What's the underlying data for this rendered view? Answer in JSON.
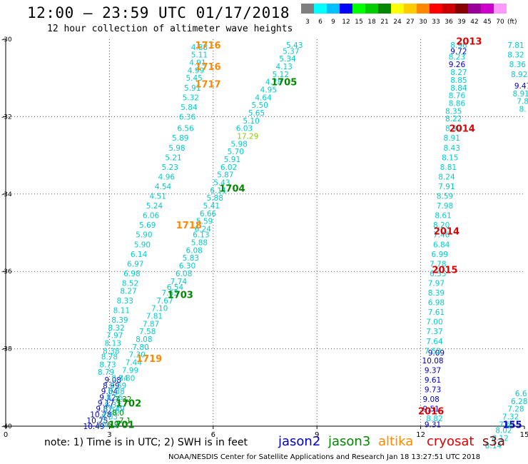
{
  "header": {
    "title": "12:00 – 23:59 UTC 01/17/2018",
    "subtitle": "12 hour collection of altimeter wave heights"
  },
  "legend": {
    "unit": "(ft)",
    "bins": [
      {
        "label": "3",
        "color": "#7f7f7f"
      },
      {
        "label": "6",
        "color": "#00ffff"
      },
      {
        "label": "9",
        "color": "#00bfff"
      },
      {
        "label": "12",
        "color": "#0000ff"
      },
      {
        "label": "15",
        "color": "#00ff00"
      },
      {
        "label": "18",
        "color": "#00cc00"
      },
      {
        "label": "21",
        "color": "#008800"
      },
      {
        "label": "24",
        "color": "#ffff00"
      },
      {
        "label": "27",
        "color": "#ffcc00"
      },
      {
        "label": "30",
        "color": "#ff8800"
      },
      {
        "label": "33",
        "color": "#ff0000"
      },
      {
        "label": "36",
        "color": "#cc0000"
      },
      {
        "label": "39",
        "color": "#880000"
      },
      {
        "label": "42",
        "color": "#990099"
      },
      {
        "label": "45",
        "color": "#cc00cc"
      },
      {
        "label": "70",
        "color": "#ff99ff"
      }
    ]
  },
  "footer": {
    "note": "note: 1) Time is in UTC; 2) SWH is in feet",
    "satellites": [
      {
        "name": "jason2",
        "color": "#0000cc"
      },
      {
        "name": "jason3",
        "color": "#008800"
      },
      {
        "name": "altika",
        "color": "#ff8800"
      },
      {
        "name": "cryosat",
        "color": "#dd0000"
      },
      {
        "name": "s3a",
        "color": "#880000"
      }
    ],
    "credit": "NOAA/NESDIS Center for Satellite Applications and Research     Jan 18 13:27:51 UTC 2018"
  },
  "chart_data": {
    "type": "scatter",
    "x_ticks": [
      "0",
      "3",
      "6",
      "9",
      "12",
      "15"
    ],
    "y_ticks": [
      "-30",
      "-32",
      "-34",
      "-36",
      "-38",
      "-40"
    ],
    "xlim": [
      0,
      15
    ],
    "ylim": [
      -40,
      -30
    ],
    "grid": true,
    "labels": [
      {
        "x": 5.85,
        "y": -30.15,
        "t": "1716",
        "c": "#ff8800"
      },
      {
        "x": 5.85,
        "y": -30.7,
        "t": "1716",
        "c": "#ff8800"
      },
      {
        "x": 5.85,
        "y": -31.15,
        "t": "1717",
        "c": "#ff8800"
      },
      {
        "x": 8.05,
        "y": -31.1,
        "t": "1705",
        "c": "#008800"
      },
      {
        "x": 6.55,
        "y": -33.85,
        "t": "1704",
        "c": "#008800"
      },
      {
        "x": 5.3,
        "y": -34.8,
        "t": "1718",
        "c": "#ff8800"
      },
      {
        "x": 5.05,
        "y": -36.6,
        "t": "1703",
        "c": "#008800"
      },
      {
        "x": 4.15,
        "y": -38.25,
        "t": "1719",
        "c": "#ff8800"
      },
      {
        "x": 3.55,
        "y": -39.4,
        "t": "1702",
        "c": "#008800"
      },
      {
        "x": 3.35,
        "y": -39.95,
        "t": "1701",
        "c": "#008800"
      },
      {
        "x": 13.4,
        "y": -30.05,
        "t": "2013",
        "c": "#dd0000"
      },
      {
        "x": 13.2,
        "y": -32.3,
        "t": "2014",
        "c": "#dd0000"
      },
      {
        "x": 12.75,
        "y": -34.95,
        "t": "2014",
        "c": "#dd0000"
      },
      {
        "x": 12.7,
        "y": -35.95,
        "t": "2015",
        "c": "#dd0000"
      },
      {
        "x": 12.3,
        "y": -39.6,
        "t": "2016",
        "c": "#dd0000"
      },
      {
        "x": 14.65,
        "y": -39.95,
        "t": "155",
        "c": "#0000cc"
      }
    ],
    "series": [
      {
        "color": "#00cccc",
        "points": [
          [
            5.6,
            -30.2,
            "4.88"
          ],
          [
            5.6,
            -30.4,
            "5.11"
          ],
          [
            5.55,
            -30.6,
            "4.91"
          ],
          [
            5.5,
            -30.8,
            "4.99"
          ],
          [
            5.45,
            -31.0,
            "5.45"
          ],
          [
            5.4,
            -31.25,
            "5.91"
          ],
          [
            5.35,
            -31.5,
            "5.32"
          ],
          [
            5.3,
            -31.75,
            "5.84"
          ],
          [
            5.25,
            -32.0,
            "6.36"
          ],
          [
            5.2,
            -32.3,
            "6.56"
          ],
          [
            5.05,
            -32.55,
            "5.89"
          ],
          [
            4.95,
            -32.8,
            "5.98"
          ],
          [
            4.85,
            -33.05,
            "5.21"
          ],
          [
            4.75,
            -33.3,
            "5.23"
          ],
          [
            4.65,
            -33.55,
            "4.96"
          ],
          [
            4.55,
            -33.8,
            "4.54"
          ],
          [
            4.4,
            -34.05,
            "4.51"
          ],
          [
            4.3,
            -34.3,
            "5.24"
          ],
          [
            4.2,
            -34.55,
            "6.06"
          ],
          [
            4.1,
            -34.8,
            "5.69"
          ],
          [
            4.0,
            -35.05,
            "5.90"
          ],
          [
            3.95,
            -35.3,
            "5.90"
          ],
          [
            3.85,
            -35.55,
            "6.14"
          ],
          [
            3.75,
            -35.8,
            "6.97"
          ],
          [
            3.65,
            -36.05,
            "6.98"
          ],
          [
            3.6,
            -36.3,
            "8.52"
          ],
          [
            3.55,
            -36.5,
            "8.27"
          ],
          [
            3.45,
            -36.75,
            "8.33"
          ],
          [
            3.35,
            -37.0,
            "8.11"
          ],
          [
            3.3,
            -37.25,
            "8.39"
          ],
          [
            3.2,
            -37.45,
            "8.32"
          ],
          [
            3.15,
            -37.65,
            "7.97"
          ],
          [
            3.1,
            -37.85,
            "8.13"
          ],
          [
            3.05,
            -38.05,
            "8.38"
          ],
          [
            3.0,
            -38.2,
            "8.78"
          ],
          [
            2.95,
            -38.4,
            "8.73"
          ],
          [
            2.9,
            -38.6,
            "8.79"
          ]
        ]
      },
      {
        "color": "#00cccc",
        "points": [
          [
            8.35,
            -30.15,
            "5.43"
          ],
          [
            8.25,
            -30.3,
            "5.37"
          ],
          [
            8.15,
            -30.5,
            "5.34"
          ],
          [
            8.05,
            -30.7,
            "4.13"
          ],
          [
            7.95,
            -30.9,
            "5.12"
          ],
          [
            7.75,
            -31.1,
            "4.78"
          ],
          [
            7.6,
            -31.3,
            "4.95"
          ],
          [
            7.45,
            -31.5,
            "4.64"
          ],
          [
            7.35,
            -31.7,
            "5.50"
          ],
          [
            7.25,
            -31.9,
            "5.65"
          ],
          [
            7.1,
            -32.1,
            "5.10"
          ],
          [
            6.9,
            -32.3,
            "6.03"
          ],
          [
            6.75,
            -32.7,
            "5.98"
          ],
          [
            6.65,
            -32.9,
            "5.70"
          ],
          [
            6.55,
            -33.1,
            "5.91"
          ],
          [
            6.45,
            -33.3,
            "6.02"
          ],
          [
            6.35,
            -33.5,
            "5.87"
          ],
          [
            6.25,
            -33.7,
            "5.43"
          ],
          [
            6.15,
            -33.9,
            "6.11"
          ],
          [
            6.05,
            -34.1,
            "5.88"
          ],
          [
            5.95,
            -34.3,
            "5.41"
          ],
          [
            5.85,
            -34.5,
            "6.66"
          ],
          [
            5.75,
            -34.7,
            "5.59"
          ],
          [
            5.7,
            -34.9,
            "6.24"
          ],
          [
            5.65,
            -35.05,
            "6.13"
          ],
          [
            5.6,
            -35.25,
            "5.88"
          ],
          [
            5.45,
            -35.45,
            "6.08"
          ],
          [
            5.35,
            -35.65,
            "5.83"
          ],
          [
            5.25,
            -35.85,
            "6.30"
          ],
          [
            5.15,
            -36.05,
            "6.08"
          ],
          [
            5.0,
            -36.25,
            "7.74"
          ],
          [
            4.9,
            -36.4,
            "6.54"
          ],
          [
            4.75,
            -36.55,
            "7.63"
          ],
          [
            4.6,
            -36.75,
            "7.67"
          ],
          [
            4.45,
            -36.95,
            "7.10"
          ],
          [
            4.3,
            -37.15,
            "7.81"
          ],
          [
            4.2,
            -37.35,
            "7.87"
          ],
          [
            4.1,
            -37.55,
            "7.58"
          ],
          [
            4.0,
            -37.75,
            "8.08"
          ],
          [
            3.9,
            -37.95,
            "7.80"
          ],
          [
            3.8,
            -38.15,
            "7.30"
          ],
          [
            3.7,
            -38.35,
            "7.44"
          ],
          [
            3.6,
            -38.55,
            "7.99"
          ],
          [
            3.5,
            -38.75,
            "7.80"
          ]
        ]
      },
      {
        "color": "#0000cc",
        "points": [
          [
            3.1,
            -38.8,
            "9.08"
          ],
          [
            3.05,
            -38.95,
            "8.99"
          ],
          [
            3.0,
            -39.1,
            "9.04"
          ],
          [
            2.95,
            -39.25,
            "9.12"
          ],
          [
            2.9,
            -39.4,
            "9.17"
          ],
          [
            2.85,
            -39.55,
            "9.87"
          ],
          [
            2.75,
            -39.7,
            "10.28"
          ],
          [
            2.65,
            -39.85,
            "10.75"
          ],
          [
            2.55,
            -40.0,
            "10.49"
          ]
        ]
      },
      {
        "color": "#00cccc",
        "points": [
          [
            3.3,
            -38.75,
            "8.84"
          ],
          [
            3.25,
            -38.95,
            "8.69"
          ],
          [
            3.2,
            -39.1,
            "8.88"
          ],
          [
            3.15,
            -39.25,
            "8.56"
          ],
          [
            3.1,
            -39.45,
            "8.32"
          ],
          [
            3.05,
            -39.6,
            "9.26"
          ],
          [
            3.0,
            -39.75,
            "8.03"
          ],
          [
            2.95,
            -39.95,
            "10.37"
          ]
        ]
      },
      {
        "color": "#0000cc",
        "points": [
          [
            13.1,
            -30.3,
            "9.72"
          ],
          [
            13.05,
            -30.65,
            "9.26"
          ],
          [
            12.45,
            -38.1,
            "9.09"
          ],
          [
            12.35,
            -38.3,
            "10.08"
          ],
          [
            12.35,
            -38.55,
            "9.37"
          ],
          [
            12.35,
            -38.8,
            "9.61"
          ],
          [
            12.35,
            -39.05,
            "9.73"
          ],
          [
            12.3,
            -39.3,
            "9.08"
          ],
          [
            12.3,
            -39.55,
            "9.51"
          ],
          [
            12.35,
            -39.95,
            "9.31"
          ]
        ]
      },
      {
        "color": "#00cccc",
        "points": [
          [
            13.1,
            -30.15,
            "8.96"
          ],
          [
            13.05,
            -30.45,
            "8.23"
          ],
          [
            13.1,
            -30.85,
            "8.27"
          ],
          [
            13.1,
            -31.05,
            "8.85"
          ],
          [
            13.1,
            -31.25,
            "8.84"
          ],
          [
            13.05,
            -31.45,
            "8.76"
          ],
          [
            13.05,
            -31.65,
            "8.86"
          ],
          [
            12.95,
            -31.85,
            "8.35"
          ],
          [
            12.95,
            -32.05,
            "8.22"
          ],
          [
            12.95,
            -32.3,
            "8.92"
          ],
          [
            12.9,
            -32.55,
            "8.91"
          ],
          [
            12.9,
            -32.8,
            "8.43"
          ],
          [
            12.85,
            -33.05,
            "8.15"
          ],
          [
            12.8,
            -33.3,
            "8.81"
          ],
          [
            12.75,
            -33.55,
            "8.24"
          ],
          [
            12.75,
            -33.8,
            "7.91"
          ],
          [
            12.7,
            -34.05,
            "8.59"
          ],
          [
            12.7,
            -34.3,
            "7.98"
          ],
          [
            12.65,
            -34.55,
            "8.61"
          ],
          [
            12.6,
            -34.8,
            "8.20"
          ],
          [
            12.6,
            -35.05,
            "7.46"
          ],
          [
            12.6,
            -35.3,
            "6.84"
          ],
          [
            12.55,
            -35.55,
            "6.99"
          ],
          [
            12.5,
            -35.8,
            "7.78"
          ],
          [
            12.5,
            -36.05,
            "6.55"
          ],
          [
            12.45,
            -36.3,
            "7.97"
          ],
          [
            12.45,
            -36.55,
            "8.39"
          ],
          [
            12.45,
            -36.8,
            "6.98"
          ],
          [
            12.45,
            -37.05,
            "7.61"
          ],
          [
            12.4,
            -37.3,
            "7.00"
          ],
          [
            12.4,
            -37.55,
            "7.37"
          ],
          [
            12.4,
            -37.8,
            "7.64"
          ],
          [
            12.35,
            -38.05,
            "7.52"
          ],
          [
            12.4,
            -39.8,
            "8.82"
          ]
        ]
      },
      {
        "color": "#00cccc",
        "points": [
          [
            14.75,
            -30.15,
            "7.81"
          ],
          [
            14.75,
            -30.4,
            "8.32"
          ],
          [
            14.8,
            -30.65,
            "8.36"
          ],
          [
            14.85,
            -30.9,
            "8.92"
          ],
          [
            14.9,
            -31.4,
            "8.91"
          ],
          [
            14.95,
            -31.6,
            "7.8"
          ],
          [
            14.95,
            -31.8,
            "8."
          ],
          [
            14.9,
            -39.15,
            "6.6"
          ],
          [
            14.85,
            -39.35,
            "6.28"
          ],
          [
            14.75,
            -39.55,
            "7.28"
          ],
          [
            14.6,
            -39.75,
            "7.32"
          ],
          [
            14.5,
            -39.95,
            "7.61"
          ],
          [
            14.4,
            -40.1,
            "8.02"
          ],
          [
            14.3,
            -40.3,
            "8.12"
          ],
          [
            14.1,
            -40.5,
            "8.14"
          ]
        ]
      },
      {
        "color": "#0000cc",
        "points": [
          [
            14.95,
            -31.2,
            "9.47"
          ]
        ]
      },
      {
        "color": "#88cc00",
        "points": [
          [
            7.0,
            -32.5,
            "17.29"
          ]
        ]
      },
      {
        "color": "#008800",
        "points": [
          [
            3.4,
            -39.3,
            "7.32"
          ],
          [
            3.25,
            -39.65,
            "8.0"
          ],
          [
            3.45,
            -39.85,
            "7.1"
          ],
          [
            3.1,
            -39.95,
            "6.9"
          ]
        ]
      },
      {
        "color": "#00bfff",
        "points": [
          [
            3.2,
            -39.55,
            "7.49"
          ]
        ]
      }
    ]
  }
}
